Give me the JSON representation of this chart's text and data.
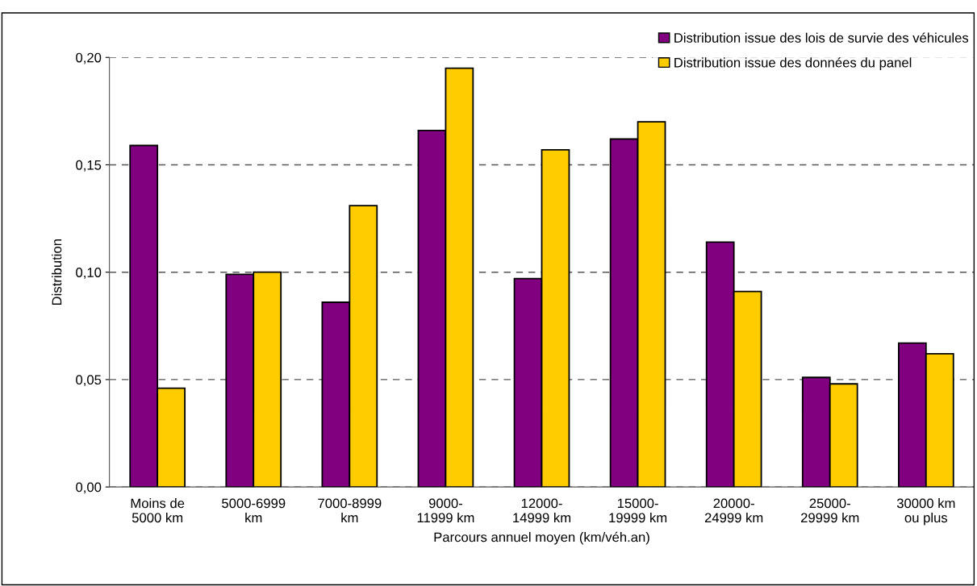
{
  "chart_data": {
    "type": "bar",
    "categories": [
      "Moins de\n5000 km",
      "5000-6999\nkm",
      "7000-8999\nkm",
      "9000-\n11999 km",
      "12000-\n14999 km",
      "15000-\n19999 km",
      "20000-\n24999 km",
      "25000-\n29999 km",
      "30000 km\nou plus"
    ],
    "series": [
      {
        "name": "Distribution issue des lois de survie des véhicules",
        "color": "#800080",
        "values": [
          0.159,
          0.099,
          0.086,
          0.166,
          0.097,
          0.162,
          0.114,
          0.051,
          0.067
        ]
      },
      {
        "name": "Distribution issue des données du panel",
        "color": "#ffcc00",
        "values": [
          0.046,
          0.1,
          0.131,
          0.195,
          0.157,
          0.17,
          0.091,
          0.048,
          0.062
        ]
      }
    ],
    "xlabel": "Parcours annuel moyen (km/véh.an)",
    "ylabel": "Distribution",
    "ylim": [
      0,
      0.2
    ],
    "yticks": [
      {
        "value": 0,
        "label": "0,00"
      },
      {
        "value": 0.05,
        "label": "0,05"
      },
      {
        "value": 0.1,
        "label": "0,10"
      },
      {
        "value": 0.15,
        "label": "0,15"
      },
      {
        "value": 0.2,
        "label": "0,20"
      }
    ],
    "grid": "y",
    "legend": "top right"
  }
}
